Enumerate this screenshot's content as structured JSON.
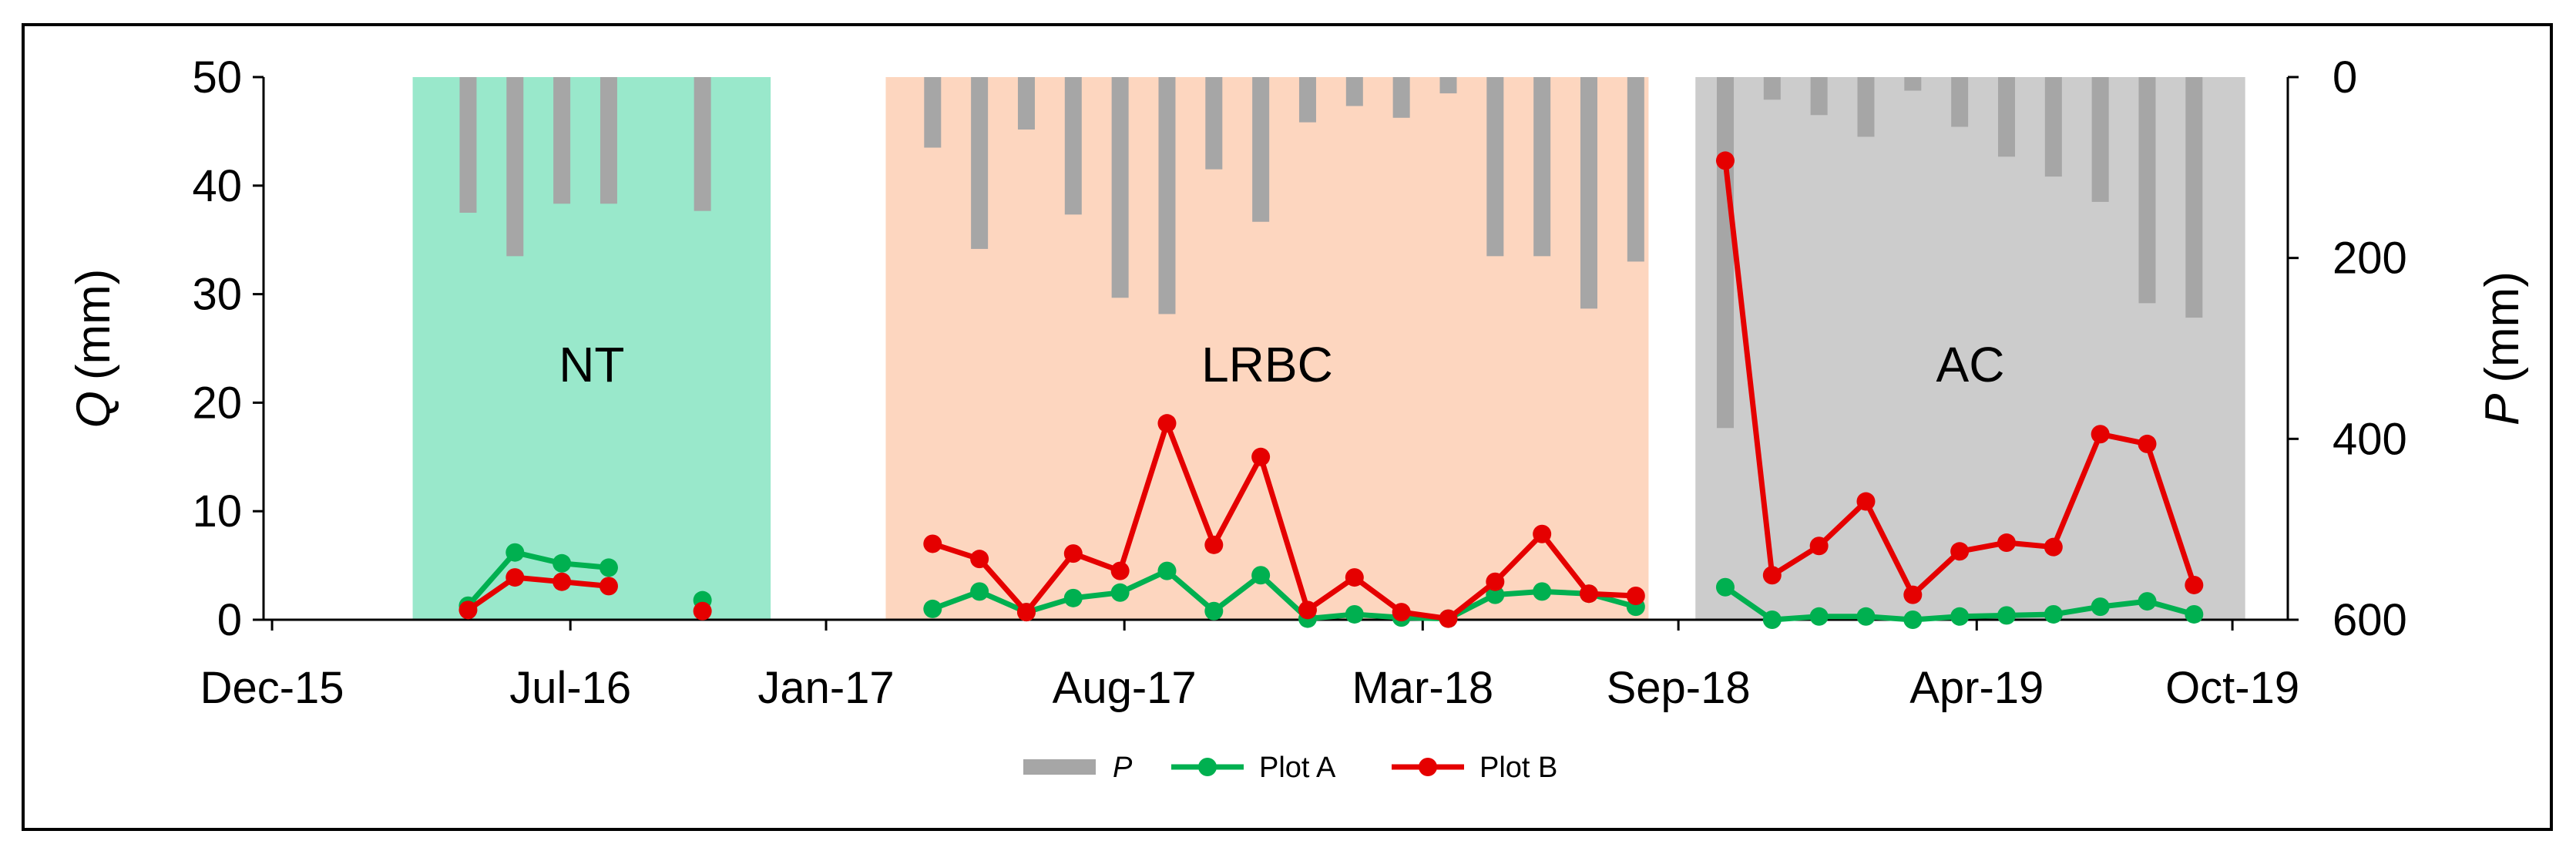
{
  "chart_data": {
    "type": "line",
    "left_axis": {
      "label": "Q",
      "unit": "(mm)",
      "min": 0,
      "max": 50,
      "ticks": [
        0,
        10,
        20,
        30,
        40,
        50
      ]
    },
    "right_axis": {
      "label": "P",
      "unit": "(mm)",
      "min": 0,
      "max": 600,
      "inverted": true,
      "ticks": [
        0,
        200,
        400,
        600
      ]
    },
    "x_axis": {
      "ticks": [
        {
          "label": "Dec-15",
          "t": 0
        },
        {
          "label": "Jul-16",
          "t": 7
        },
        {
          "label": "Jan-17",
          "t": 13
        },
        {
          "label": "Aug-17",
          "t": 20
        },
        {
          "label": "Mar-18",
          "t": 27
        },
        {
          "label": "Sep-18",
          "t": 33
        },
        {
          "label": "Apr-19",
          "t": 40
        },
        {
          "label": "Oct-19",
          "t": 46
        }
      ],
      "min": -0.2,
      "max": 47.3
    },
    "periods": [
      {
        "label": "NT",
        "start": 3.3,
        "end": 11.7,
        "color": "#99e8cb"
      },
      {
        "label": "LRBC",
        "start": 14.4,
        "end": 32.3,
        "color": "#fdd6bf"
      },
      {
        "label": "AC",
        "start": 33.4,
        "end": 46.3,
        "color": "#cccccc"
      }
    ],
    "precipitation": {
      "name": "P",
      "color": "#a6a6a6",
      "points": [
        {
          "t": 4.6,
          "v": 150
        },
        {
          "t": 5.7,
          "v": 198
        },
        {
          "t": 6.8,
          "v": 140
        },
        {
          "t": 7.9,
          "v": 140
        },
        {
          "t": 10.1,
          "v": 148
        },
        {
          "t": 15.5,
          "v": 78
        },
        {
          "t": 16.6,
          "v": 190
        },
        {
          "t": 17.7,
          "v": 58
        },
        {
          "t": 18.8,
          "v": 152
        },
        {
          "t": 19.9,
          "v": 244
        },
        {
          "t": 21.0,
          "v": 262
        },
        {
          "t": 22.1,
          "v": 102
        },
        {
          "t": 23.2,
          "v": 160
        },
        {
          "t": 24.3,
          "v": 50
        },
        {
          "t": 25.4,
          "v": 32
        },
        {
          "t": 26.5,
          "v": 45
        },
        {
          "t": 27.6,
          "v": 18
        },
        {
          "t": 28.7,
          "v": 198
        },
        {
          "t": 29.8,
          "v": 198
        },
        {
          "t": 30.9,
          "v": 256
        },
        {
          "t": 32.0,
          "v": 204
        },
        {
          "t": 34.1,
          "v": 388
        },
        {
          "t": 35.2,
          "v": 25
        },
        {
          "t": 36.3,
          "v": 42
        },
        {
          "t": 37.4,
          "v": 66
        },
        {
          "t": 38.5,
          "v": 15
        },
        {
          "t": 39.6,
          "v": 55
        },
        {
          "t": 40.7,
          "v": 88
        },
        {
          "t": 41.8,
          "v": 110
        },
        {
          "t": 42.9,
          "v": 138
        },
        {
          "t": 44.0,
          "v": 250
        },
        {
          "t": 45.1,
          "v": 266
        }
      ]
    },
    "series": [
      {
        "name": "Plot A",
        "color": "#00b050",
        "segments": [
          [
            {
              "t": 4.6,
              "v": 1.3
            },
            {
              "t": 5.7,
              "v": 6.2
            },
            {
              "t": 6.8,
              "v": 5.2
            },
            {
              "t": 7.9,
              "v": 4.8
            }
          ],
          [
            {
              "t": 10.1,
              "v": 1.8
            }
          ],
          [
            {
              "t": 15.5,
              "v": 1.0
            },
            {
              "t": 16.6,
              "v": 2.6
            },
            {
              "t": 17.7,
              "v": 0.7
            },
            {
              "t": 18.8,
              "v": 2.0
            },
            {
              "t": 19.9,
              "v": 2.5
            },
            {
              "t": 21.0,
              "v": 4.5
            },
            {
              "t": 22.1,
              "v": 0.8
            },
            {
              "t": 23.2,
              "v": 4.1
            },
            {
              "t": 24.3,
              "v": 0.1
            },
            {
              "t": 25.4,
              "v": 0.5
            },
            {
              "t": 26.5,
              "v": 0.2
            },
            {
              "t": 27.6,
              "v": 0.1
            },
            {
              "t": 28.7,
              "v": 2.3
            },
            {
              "t": 29.8,
              "v": 2.6
            },
            {
              "t": 30.9,
              "v": 2.4
            },
            {
              "t": 32.0,
              "v": 1.2
            }
          ],
          [
            {
              "t": 34.1,
              "v": 3.0
            },
            {
              "t": 35.2,
              "v": 0.0
            },
            {
              "t": 36.3,
              "v": 0.3
            },
            {
              "t": 37.4,
              "v": 0.3
            },
            {
              "t": 38.5,
              "v": 0.0
            },
            {
              "t": 39.6,
              "v": 0.3
            },
            {
              "t": 40.7,
              "v": 0.4
            },
            {
              "t": 41.8,
              "v": 0.5
            },
            {
              "t": 42.9,
              "v": 1.2
            },
            {
              "t": 44.0,
              "v": 1.7
            },
            {
              "t": 45.1,
              "v": 0.5
            }
          ]
        ]
      },
      {
        "name": "Plot B",
        "color": "#e50000",
        "segments": [
          [
            {
              "t": 4.6,
              "v": 0.9
            },
            {
              "t": 5.7,
              "v": 3.9
            },
            {
              "t": 6.8,
              "v": 3.5
            },
            {
              "t": 7.9,
              "v": 3.1
            }
          ],
          [
            {
              "t": 10.1,
              "v": 0.8
            }
          ],
          [
            {
              "t": 15.5,
              "v": 7.0
            },
            {
              "t": 16.6,
              "v": 5.6
            },
            {
              "t": 17.7,
              "v": 0.7
            },
            {
              "t": 18.8,
              "v": 6.1
            },
            {
              "t": 19.9,
              "v": 4.5
            },
            {
              "t": 21.0,
              "v": 18.1
            },
            {
              "t": 22.1,
              "v": 6.9
            },
            {
              "t": 23.2,
              "v": 15.0
            },
            {
              "t": 24.3,
              "v": 0.9
            },
            {
              "t": 25.4,
              "v": 3.9
            },
            {
              "t": 26.5,
              "v": 0.7
            },
            {
              "t": 27.6,
              "v": 0.1
            },
            {
              "t": 28.7,
              "v": 3.5
            },
            {
              "t": 29.8,
              "v": 7.9
            },
            {
              "t": 30.9,
              "v": 2.4
            },
            {
              "t": 32.0,
              "v": 2.2
            }
          ],
          [
            {
              "t": 34.1,
              "v": 42.3
            },
            {
              "t": 35.2,
              "v": 4.1
            },
            {
              "t": 36.3,
              "v": 6.8
            },
            {
              "t": 37.4,
              "v": 10.9
            },
            {
              "t": 38.5,
              "v": 2.3
            },
            {
              "t": 39.6,
              "v": 6.3
            },
            {
              "t": 40.7,
              "v": 7.1
            },
            {
              "t": 41.8,
              "v": 6.7
            },
            {
              "t": 42.9,
              "v": 17.1
            },
            {
              "t": 44.0,
              "v": 16.2
            },
            {
              "t": 45.1,
              "v": 3.2
            }
          ]
        ]
      }
    ],
    "legend": [
      "P",
      "Plot A",
      "Plot B"
    ]
  }
}
